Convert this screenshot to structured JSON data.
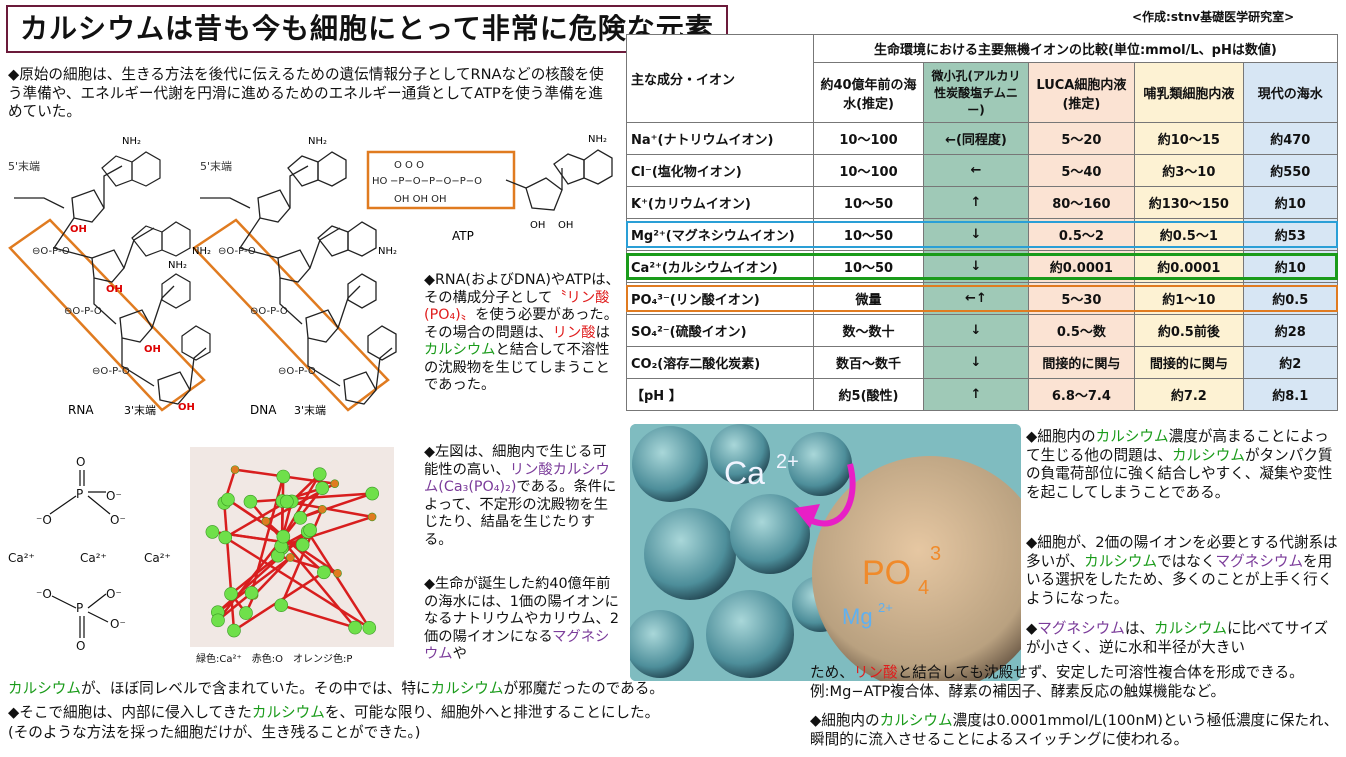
{
  "title": "カルシウムは昔も今も細胞にとって非常に危険な元素",
  "credit": "<作成:stnv基礎医学研究室>",
  "intro": "◆原始の細胞は、生きる方法を後代に伝えるための遺伝情報分子としてRNAなどの核酸を使う準備や、エネルギー代謝を円滑に進めるためのエネルギー通貨としてATPを使う準備を進めていた。",
  "structure_labels": {
    "five_prime_rna": "5'末端",
    "five_prime_dna": "5'末端",
    "three_prime_rna": "3'末端",
    "three_prime_dna": "3'末端",
    "rna": "RNA",
    "dna": "DNA",
    "atp": "ATP",
    "oh": "OH",
    "nh2": "NH₂",
    "ho": "HO"
  },
  "phosphate_labels": {
    "ca1": "Ca²⁺",
    "ca2": "Ca²⁺",
    "ca3": "Ca²⁺",
    "p": "P",
    "o": "O",
    "o_minus": "⁻O",
    "o_minus_right": "O⁻"
  },
  "crystal_caption": "緑色:Ca²⁺　赤色:O　オレンジ色:P",
  "middle_text": {
    "p1_a": "◆RNA(およびDNA)やATPは、その構成分子として",
    "p1_b": "〝リン酸(PO₄)〟",
    "p1_c": "を使う必要があった。その場合の問題は、",
    "p1_d": "リン酸",
    "p1_e": "は",
    "p1_f": "カルシウム",
    "p1_g": "と結合して不溶性の沈殿物を生じてしまうことであった。",
    "p2_a": "◆左図は、細胞内で生じる可能性の高い、",
    "p2_b": "リン酸カルシウム(Ca₃(PO₄)₂)",
    "p2_c": "である。条件によって、不定形の沈殿物を生じたり、結晶を生じたりする。",
    "p3_a": "◆生命が誕生した約40億年前の海水には、1価の陽イオンになるナトリウムやカリウム、2価の陽イオンになる",
    "p3_b": "マグネシウム",
    "p3_c": "や"
  },
  "bottom_text": {
    "l1_a": "カルシウム",
    "l1_b": "が、ほぼ同レベルで含まれていた。その中では、特に",
    "l1_c": "カルシウム",
    "l1_d": "が邪魔だったのである。",
    "l2_a": "◆そこで細胞は、内部に侵入してきた",
    "l2_b": "カルシウム",
    "l2_c": "を、可能な限り、細胞外へと排泄することにした。",
    "l3": "(そのような方法を採った細胞だけが、生き残ることができた。)"
  },
  "table": {
    "caption": "生命環境における主要無機イオンの比較(単位:mmol/L、pHは数値)",
    "corner": "主な成分・イオン",
    "headers": [
      "約40億年前の海水(推定)",
      "微小孔(アルカリ性炭酸塩チムニー)",
      "LUCA細胞内液(推定)",
      "哺乳類細胞内液",
      "現代の海水"
    ],
    "rows": [
      {
        "ion": "Na⁺(ナトリウムイオン)",
        "values": [
          "10～100",
          "←(同程度)",
          "5～20",
          "約10～15",
          "約470"
        ]
      },
      {
        "ion": "Cl⁻(塩化物イオン)",
        "values": [
          "10～100",
          "←",
          "5～40",
          "約3～10",
          "約550"
        ]
      },
      {
        "ion": "K⁺(カリウムイオン)",
        "values": [
          "10～50",
          "↑",
          "80～160",
          "約130～150",
          "約10"
        ]
      },
      {
        "ion": "Mg²⁺(マグネシウムイオン)",
        "values": [
          "10～50",
          "↓",
          "0.5～2",
          "約0.5～1",
          "約53"
        ]
      },
      {
        "ion": "Ca²⁺(カルシウムイオン)",
        "values": [
          "10～50",
          "↓",
          "約0.0001",
          "約0.0001",
          "約10"
        ]
      },
      {
        "ion": "PO₄³⁻(リン酸イオン)",
        "values": [
          "微量",
          "←↑",
          "5～30",
          "約1～10",
          "約0.5"
        ]
      },
      {
        "ion": "SO₄²⁻(硫酸イオン)",
        "values": [
          "数～数十",
          "↓",
          "0.5～数",
          "約0.5前後",
          "約28"
        ]
      },
      {
        "ion": "CO₂(溶存二酸化炭素)",
        "values": [
          "数百～数千",
          "↓",
          "間接的に関与",
          "間接的に関与",
          "約2"
        ]
      },
      {
        "ion": "【pH 】",
        "values": [
          "約5(酸性)",
          "↑",
          "6.8～7.4",
          "約7.2",
          "約8.1"
        ]
      }
    ]
  },
  "photo_labels": {
    "ca": "Ca",
    "ca_charge": "2+",
    "po": "PO",
    "po_sub": "4",
    "po_sup": "3",
    "mg": "Mg",
    "mg_charge": "2+"
  },
  "right_text": {
    "p1_a": "◆細胞内の",
    "p1_b": "カルシウム",
    "p1_c": "濃度が高まることによって生じる他の問題は、",
    "p1_d": "カルシウム",
    "p1_e": "がタンパク質の負電荷部位に強く結合しやすく、凝集や変性を起こしてしまうことである。",
    "p2_a": "◆細胞が、2価の陽イオンを必要とする代謝系は多いが、",
    "p2_b": "カルシウム",
    "p2_c": "ではなく",
    "p2_d": "マグネシウム",
    "p2_e": "を用いる選択をしたため、多くのことが上手く行くようになった。",
    "p3_a": "◆",
    "p3_b": "マグネシウム",
    "p3_c": "は、",
    "p3_d": "カルシウム",
    "p3_e": "に比べてサイズが小さく、逆に水和半径が大きい",
    "p4_a": "ため、",
    "p4_b": "リン酸",
    "p4_c": "と結合しても沈殿せず、安定した可溶性複合体を形成できる。例:Mg−ATP複合体、酵素の補因子、酵素反応の触媒機能など。",
    "p5_a": "◆細胞内の",
    "p5_b": "カルシウム",
    "p5_c": "濃度は0.0001mmol/L(100nM)という極低濃度に保たれ、瞬間的に流入させることによるスイッチングに使われる。"
  },
  "colors": {
    "title_border": "#6b1a3a",
    "calcium": "#1a9b1a",
    "phosphate": "#e01d1d",
    "magnesium": "#7b3c9a",
    "orange_box": "#e07b20"
  }
}
